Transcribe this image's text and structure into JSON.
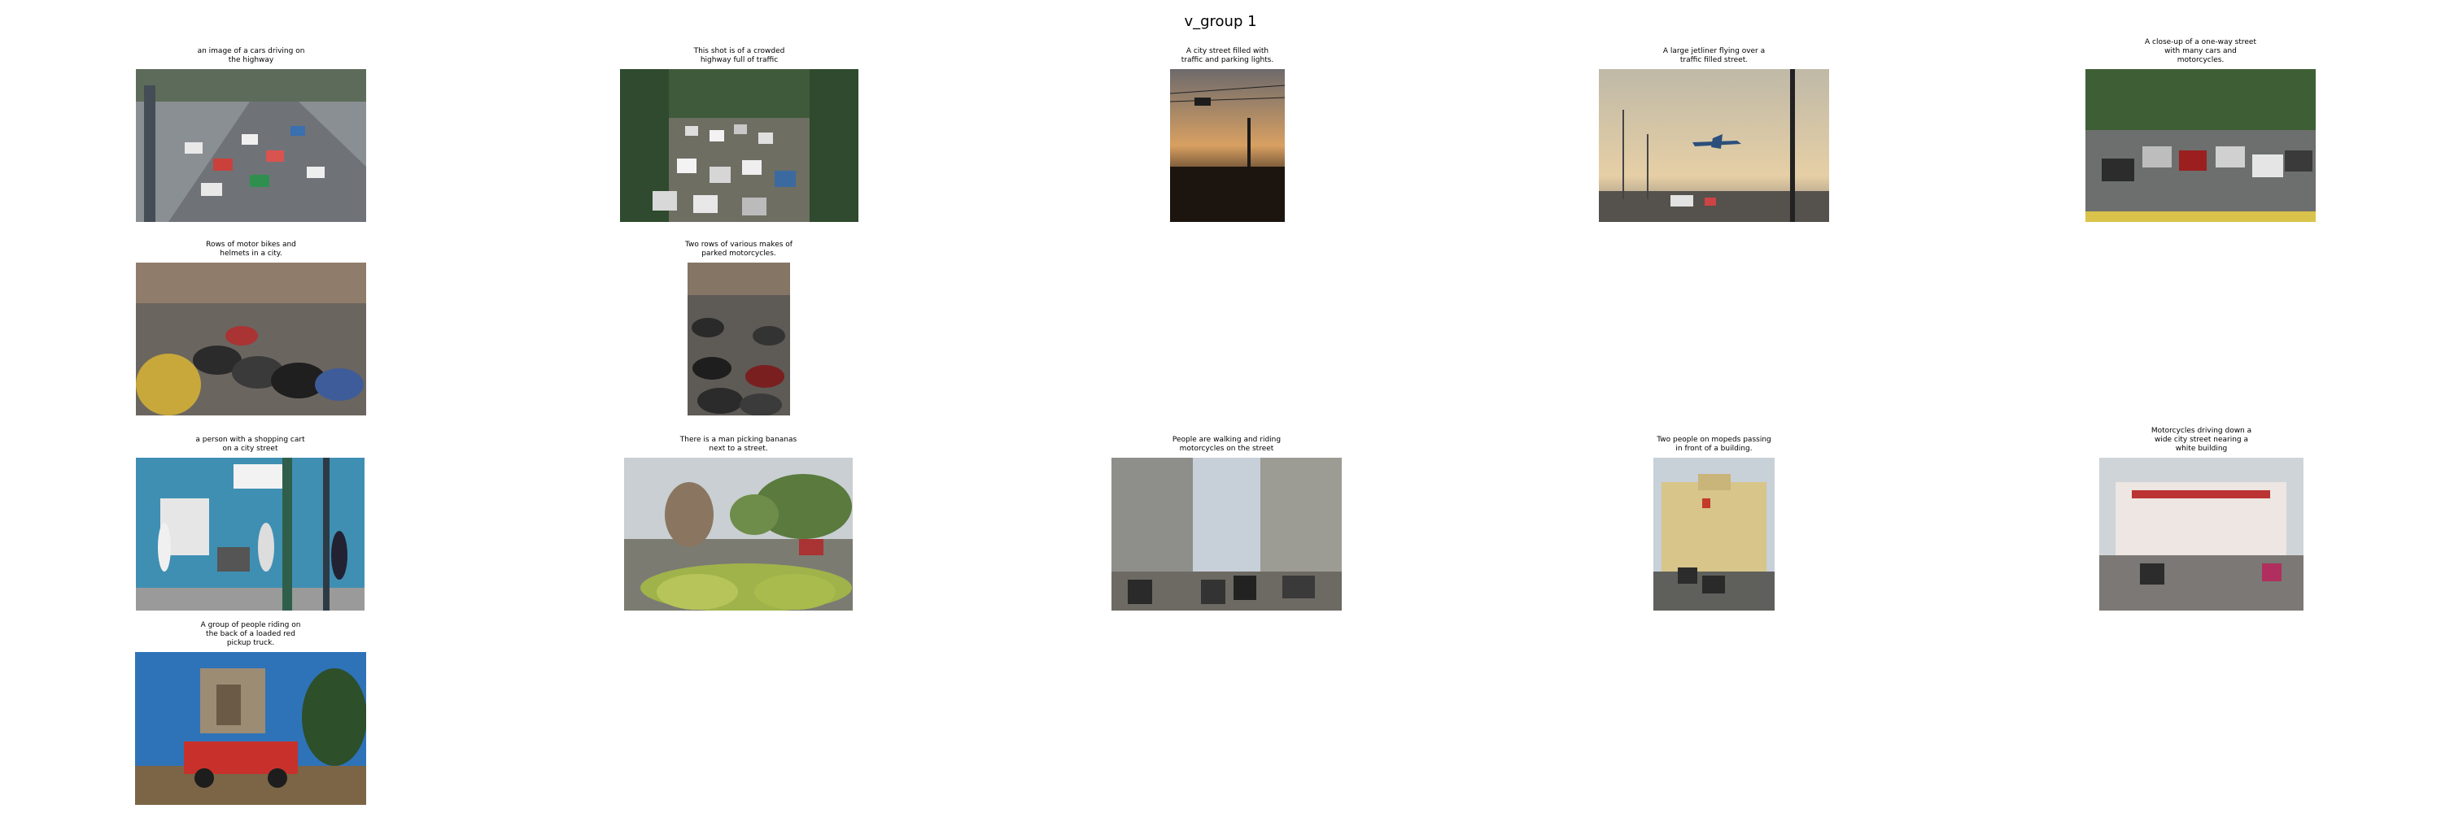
{
  "figure": {
    "title": "v_group 1"
  },
  "images": [
    {
      "caption": "an image of a cars driving on\nthe highway",
      "scene": "highway-traffic-photo"
    },
    {
      "caption": "This shot is of a crowded\nhighway full of traffic",
      "scene": "crowded-highway-photo"
    },
    {
      "caption": "A city street filled with\ntraffic and parking lights.",
      "scene": "sunset-street-photo"
    },
    {
      "caption": "A large jetliner flying over a\ntraffic filled street.",
      "scene": "jetliner-street-photo"
    },
    {
      "caption": "A close-up of a one-way street\nwith many cars and\nmotorcycles.",
      "scene": "one-way-street-photo"
    },
    {
      "caption": "Rows of motor bikes and\nhelmets in a city.",
      "scene": "parked-motorbikes-photo"
    },
    {
      "caption": "Two rows of various makes of\nparked motorcycles.",
      "scene": "parked-motorcycles-photo"
    },
    {
      "caption": "a person with a shopping cart\non a city street",
      "scene": "shopping-cart-street-photo"
    },
    {
      "caption": "There is a man picking bananas\nnext to a street.",
      "scene": "bananas-photo"
    },
    {
      "caption": "People are walking and riding\nmotorcycles on the street",
      "scene": "motorcycle-street-photo"
    },
    {
      "caption": "Two people on mopeds passing\nin front of a building.",
      "scene": "mopeds-building-photo"
    },
    {
      "caption": "Motorcycles driving down a\nwide city street nearing a\nwhite building",
      "scene": "white-building-street-photo"
    },
    {
      "caption": "A group of people riding on\nthe back of a loaded red\npickup truck.",
      "scene": "red-pickup-truck-photo"
    }
  ]
}
